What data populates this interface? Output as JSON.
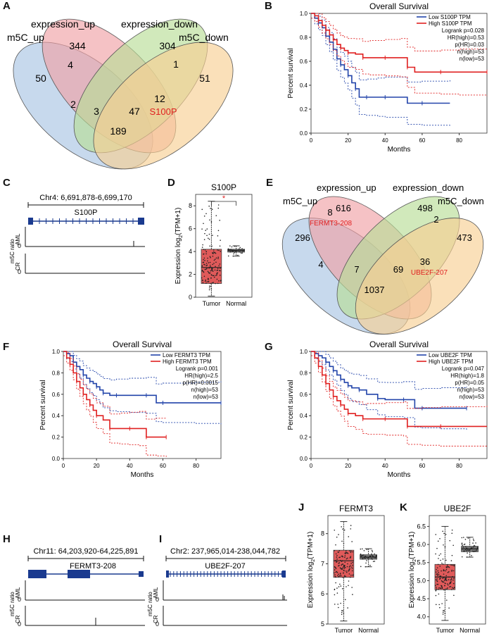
{
  "panels": {
    "A": {
      "label": "A",
      "sets": [
        "m5C_up",
        "expression_up",
        "expression_down",
        "m5C_down"
      ],
      "counts": {
        "exp_up_only": "344",
        "exp_down_only": "304",
        "m5c_up_only": "50",
        "m5c_down_only": "51",
        "up_expup": "4",
        "expup_expdown": "1",
        "up_expdown": "2",
        "up_expdown_down": "3",
        "expup_down": "12",
        "expup_down_gene": "S100P",
        "up_expup_down": "47",
        "up_down": "189"
      }
    },
    "B": {
      "label": "B",
      "title": "Overall Survival",
      "xlabel": "Months",
      "ylabel": "Percent survival",
      "xticks": [
        "0",
        "20",
        "40",
        "60",
        "80"
      ],
      "yticks": [
        "0.0",
        "0.2",
        "0.4",
        "0.6",
        "0.8",
        "1.0"
      ],
      "legend": [
        "Low S100P TPM",
        "High S100P TPM"
      ],
      "stats": [
        "Logrank p=0.028",
        "HR(high)=0.53",
        "p(HR)=0.03",
        "n(high)=53",
        "n(low)=53"
      ]
    },
    "C": {
      "label": "C",
      "coord": "Chr4: 6,691,878-6,699,170",
      "gene": "S100P",
      "track_ratio": "m5C ratio",
      "track_aml": "AML",
      "track_cr": "CR",
      "zero": "0"
    },
    "D": {
      "label": "D",
      "title": "S100P",
      "ylabel_pre": "Expression log",
      "ylabel_sub": "2",
      "ylabel_post": "(TPM+1)",
      "yticks": [
        "0",
        "2",
        "4",
        "6",
        "8"
      ],
      "cats": [
        "Tumor",
        "Normal"
      ],
      "sig": "*"
    },
    "E": {
      "label": "E",
      "sets": [
        "m5C_up",
        "expression_up",
        "expression_down",
        "m5C_down"
      ],
      "counts": {
        "exp_up_only": "616",
        "exp_down_only": "498",
        "m5c_up_only": "296",
        "m5c_down_only": "473",
        "up_expup": "8",
        "up_expup_gene": "FERMT3-208",
        "expup_expdown": "2",
        "up_expdown": "4",
        "up_expdown_down": "7",
        "expup_down": "36",
        "expup_down_gene": "UBE2F-207",
        "up_expup_down": "69",
        "up_down": "1037"
      }
    },
    "F": {
      "label": "F",
      "title": "Overall Survival",
      "xlabel": "Months",
      "ylabel": "Percent survival",
      "xticks": [
        "0",
        "20",
        "40",
        "60",
        "80"
      ],
      "yticks": [
        "0.0",
        "0.2",
        "0.4",
        "0.6",
        "0.8",
        "1.0"
      ],
      "legend": [
        "Low FERMT3 TPM",
        "High FERMT3 TPM"
      ],
      "stats": [
        "Logrank p=0.001",
        "HR(high)=2.5",
        "p(HR)=0.0015",
        "n(high)=53",
        "n(low)=53"
      ]
    },
    "G": {
      "label": "G",
      "title": "Overall Survival",
      "xlabel": "Months",
      "ylabel": "Percent survival",
      "xticks": [
        "0",
        "20",
        "40",
        "60",
        "80"
      ],
      "yticks": [
        "0.0",
        "0.2",
        "0.4",
        "0.6",
        "0.8",
        "1.0"
      ],
      "legend": [
        "Low UBE2F TPM",
        "High UBE2F TPM"
      ],
      "stats": [
        "Logrank p=0.047",
        "HR(high)=1.8",
        "p(HR)=0.05",
        "n(high)=53",
        "n(low)=53"
      ]
    },
    "H": {
      "label": "H",
      "coord": "Chr11: 64,203,920-64,225,891",
      "gene": "FERMT3-208",
      "track_ratio": "m5C ratio",
      "track_aml": "AML",
      "track_cr": "CR",
      "zero": "0"
    },
    "I": {
      "label": "I",
      "coord": "Chr2: 237,965,014-238,044,782",
      "gene": "UBE2F-207",
      "track_ratio": "m5C ratio",
      "track_aml": "AML",
      "track_cr": "CR",
      "zero": "0"
    },
    "J": {
      "label": "J",
      "title": "FERMT3",
      "ylabel_pre": "Expression log",
      "ylabel_sub": "2",
      "ylabel_post": "(TPM+1)",
      "yticks": [
        "5",
        "6",
        "7",
        "8"
      ],
      "cats": [
        "Tumor",
        "Normal"
      ]
    },
    "K": {
      "label": "K",
      "title": "UBE2F",
      "ylabel_pre": "Expression log",
      "ylabel_sub": "2",
      "ylabel_post": "(TPM+1)",
      "yticks": [
        "4.0",
        "4.5",
        "5.0",
        "5.5",
        "6.0",
        "6.5"
      ],
      "cats": [
        "Tumor",
        "Normal"
      ]
    }
  },
  "colors": {
    "low": "#2244aa",
    "high": "#e02020",
    "tumor": "#e05a5a",
    "normal": "#777777",
    "v_up": "#a9c4e4",
    "v_expup": "#f0a2a6",
    "v_expdown": "#b9dd96",
    "v_down": "#f7cf93"
  },
  "chart_data": [
    {
      "panel": "B",
      "type": "line",
      "title": "Overall Survival",
      "xlabel": "Months",
      "ylabel": "Percent survival",
      "xlim": [
        0,
        95
      ],
      "ylim": [
        0,
        1
      ],
      "series": [
        {
          "name": "Low S100P TPM",
          "x": [
            0,
            2,
            4,
            6,
            8,
            10,
            12,
            14,
            16,
            18,
            20,
            22,
            24,
            26,
            30,
            36,
            40,
            52,
            60,
            75
          ],
          "y": [
            1.0,
            0.96,
            0.92,
            0.88,
            0.81,
            0.76,
            0.7,
            0.62,
            0.57,
            0.53,
            0.48,
            0.42,
            0.37,
            0.3,
            0.3,
            0.3,
            0.3,
            0.25,
            0.25,
            0.25
          ]
        },
        {
          "name": "High S100P TPM",
          "x": [
            0,
            2,
            4,
            6,
            8,
            10,
            12,
            14,
            16,
            18,
            20,
            24,
            28,
            32,
            40,
            48,
            52,
            56,
            70,
            80,
            95
          ],
          "y": [
            1.0,
            0.98,
            0.94,
            0.9,
            0.86,
            0.82,
            0.78,
            0.74,
            0.71,
            0.69,
            0.67,
            0.66,
            0.63,
            0.63,
            0.63,
            0.63,
            0.55,
            0.51,
            0.51,
            0.51,
            0.51
          ]
        }
      ]
    },
    {
      "panel": "F",
      "type": "line",
      "title": "Overall Survival",
      "xlabel": "Months",
      "ylabel": "Percent survival",
      "xlim": [
        0,
        95
      ],
      "ylim": [
        0,
        1
      ],
      "series": [
        {
          "name": "Low FERMT3 TPM",
          "x": [
            0,
            2,
            4,
            6,
            8,
            10,
            12,
            14,
            16,
            18,
            20,
            22,
            24,
            28,
            32,
            40,
            50,
            56,
            60,
            80,
            95
          ],
          "y": [
            1.0,
            0.98,
            0.96,
            0.9,
            0.86,
            0.83,
            0.78,
            0.75,
            0.72,
            0.7,
            0.67,
            0.64,
            0.61,
            0.59,
            0.59,
            0.59,
            0.59,
            0.52,
            0.52,
            0.52,
            0.52
          ]
        },
        {
          "name": "High FERMT3 TPM",
          "x": [
            0,
            2,
            4,
            6,
            8,
            10,
            12,
            14,
            16,
            18,
            20,
            24,
            28,
            34,
            40,
            46,
            50,
            56,
            62
          ],
          "y": [
            1.0,
            0.94,
            0.88,
            0.8,
            0.72,
            0.66,
            0.6,
            0.55,
            0.5,
            0.45,
            0.4,
            0.36,
            0.28,
            0.28,
            0.28,
            0.28,
            0.2,
            0.2,
            0.2
          ]
        }
      ]
    },
    {
      "panel": "G",
      "type": "line",
      "title": "Overall Survival",
      "xlabel": "Months",
      "ylabel": "Percent survival",
      "xlim": [
        0,
        95
      ],
      "ylim": [
        0,
        1
      ],
      "series": [
        {
          "name": "Low UBE2F TPM",
          "x": [
            0,
            2,
            4,
            6,
            8,
            10,
            12,
            14,
            16,
            18,
            20,
            22,
            26,
            30,
            36,
            40,
            50,
            56,
            60,
            70,
            84
          ],
          "y": [
            1.0,
            0.98,
            0.96,
            0.94,
            0.9,
            0.86,
            0.82,
            0.78,
            0.74,
            0.71,
            0.68,
            0.66,
            0.64,
            0.6,
            0.56,
            0.55,
            0.55,
            0.47,
            0.47,
            0.47,
            0.47
          ]
        },
        {
          "name": "High UBE2F TPM",
          "x": [
            0,
            2,
            4,
            6,
            8,
            10,
            12,
            14,
            16,
            18,
            20,
            24,
            28,
            30,
            40,
            50,
            52,
            60,
            70,
            95
          ],
          "y": [
            1.0,
            0.94,
            0.86,
            0.78,
            0.7,
            0.64,
            0.58,
            0.54,
            0.5,
            0.46,
            0.42,
            0.4,
            0.37,
            0.37,
            0.37,
            0.37,
            0.3,
            0.3,
            0.3,
            0.3
          ]
        }
      ]
    },
    {
      "panel": "D",
      "type": "bar",
      "title": "S100P",
      "categories": [
        "Tumor",
        "Normal"
      ],
      "ylim": [
        0,
        9
      ],
      "box": [
        {
          "name": "Tumor",
          "min": 0.1,
          "q1": 1.2,
          "median": 2.6,
          "q3": 4.2,
          "max": 8.4
        },
        {
          "name": "Normal",
          "min": 3.6,
          "q1": 3.95,
          "median": 4.1,
          "q3": 4.2,
          "max": 4.5
        }
      ]
    },
    {
      "panel": "J",
      "type": "bar",
      "title": "FERMT3",
      "categories": [
        "Tumor",
        "Normal"
      ],
      "ylim": [
        5,
        8.6
      ],
      "box": [
        {
          "name": "Tumor",
          "min": 5.1,
          "q1": 6.55,
          "median": 7.1,
          "q3": 7.45,
          "max": 8.4
        },
        {
          "name": "Normal",
          "min": 6.9,
          "q1": 7.15,
          "median": 7.22,
          "q3": 7.3,
          "max": 7.5
        }
      ]
    },
    {
      "panel": "K",
      "type": "bar",
      "title": "UBE2F",
      "categories": [
        "Tumor",
        "Normal"
      ],
      "ylim": [
        3.8,
        6.8
      ],
      "box": [
        {
          "name": "Tumor",
          "min": 3.9,
          "q1": 4.75,
          "median": 5.1,
          "q3": 5.45,
          "max": 6.5
        },
        {
          "name": "Normal",
          "min": 5.65,
          "q1": 5.8,
          "median": 5.88,
          "q3": 5.95,
          "max": 6.2
        }
      ]
    }
  ]
}
